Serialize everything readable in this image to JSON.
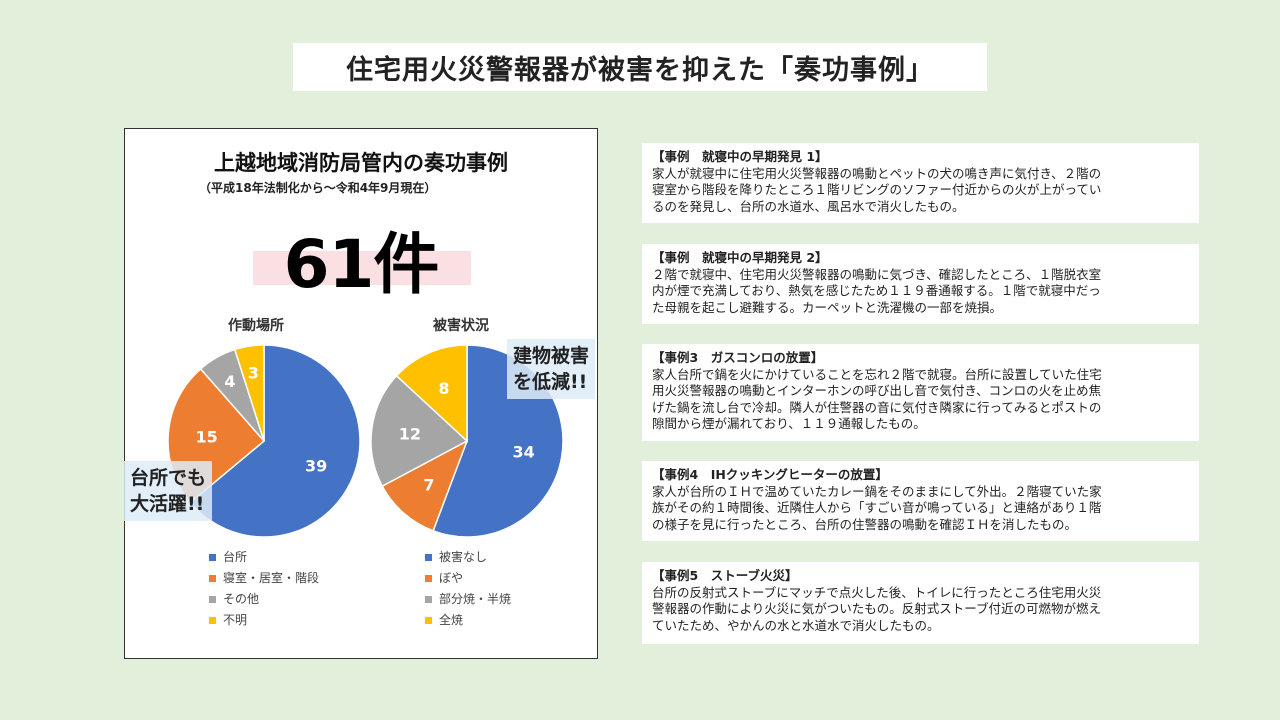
{
  "page_title": "住宅用火災警報器が被害を抑えた「奏功事例」",
  "panel": {
    "title": "上越地域消防局管内の奏功事例",
    "subtitle": "（平成18年法制化から～令和4年9月現在）",
    "count": "61件"
  },
  "callouts": {
    "kitchen": [
      "台所でも",
      "大活躍!!"
    ],
    "damage": [
      "建物被害",
      "を低減!!"
    ]
  },
  "colors": {
    "blue": "#4472c4",
    "orange": "#ed7d31",
    "gray": "#a5a5a5",
    "yellow": "#ffc000"
  },
  "chart_data": [
    {
      "type": "pie",
      "title": "作動場所",
      "categories": [
        "台所",
        "寝室・居室・階段",
        "その他",
        "不明"
      ],
      "values": [
        39,
        15,
        4,
        3
      ]
    },
    {
      "type": "pie",
      "title": "被害状況",
      "categories": [
        "被害なし",
        "ぼや",
        "部分焼・半焼",
        "全焼"
      ],
      "values": [
        34,
        7,
        12,
        8
      ]
    }
  ],
  "cases": [
    {
      "title": "【事例　就寝中の早期発見 1】",
      "lines": [
        "家人が就寝中に住宅用火災警報器の鳴動とペットの犬の鳴き声に気付き、２階の",
        "寝室から階段を降りたところ１階リビングのソファー付近からの火が上がってい",
        "るのを発見し、台所の水道水、風呂水で消火したもの。"
      ]
    },
    {
      "title": "【事例　就寝中の早期発見 2】",
      "lines": [
        "２階で就寝中、住宅用火災警報器の鳴動に気づき、確認したところ、１階脱衣室",
        "内が煙で充満しており、熱気を感じたため１１９番通報する。１階で就寝中だっ",
        "た母親を起こし避難する。カーペットと洗濯機の一部を焼損。"
      ]
    },
    {
      "title": "【事例3　ガスコンロの放置】",
      "lines": [
        "家人台所で鍋を火にかけていることを忘れ２階で就寝。台所に設置していた住宅",
        "用火災警報器の鳴動とインターホンの呼び出し音で気付き、コンロの火を止め焦",
        "げた鍋を流し台で冷却。隣人が住警器の音に気付き隣家に行ってみるとポストの",
        "隙間から煙が漏れており、１１９通報したもの。"
      ]
    },
    {
      "title": "【事例4　IHクッキングヒーターの放置】",
      "lines": [
        "家人が台所のＩＨで温めていたカレー鍋をそのままにして外出。２階寝ていた家",
        "族がその約１時間後、近隣住人から「すごい音が鳴っている」と連絡があり１階",
        "の様子を見に行ったところ、台所の住警器の鳴動を確認ＩＨを消したもの。"
      ]
    },
    {
      "title": "【事例5　ストーブ火災】",
      "lines": [
        "台所の反射式ストーブにマッチで点火した後、トイレに行ったところ住宅用火災",
        "警報器の作動により火災に気がついたもの。反射式ストーブ付近の可燃物が燃え",
        "ていたため、やかんの水と水道水で消火したもの。"
      ]
    }
  ]
}
